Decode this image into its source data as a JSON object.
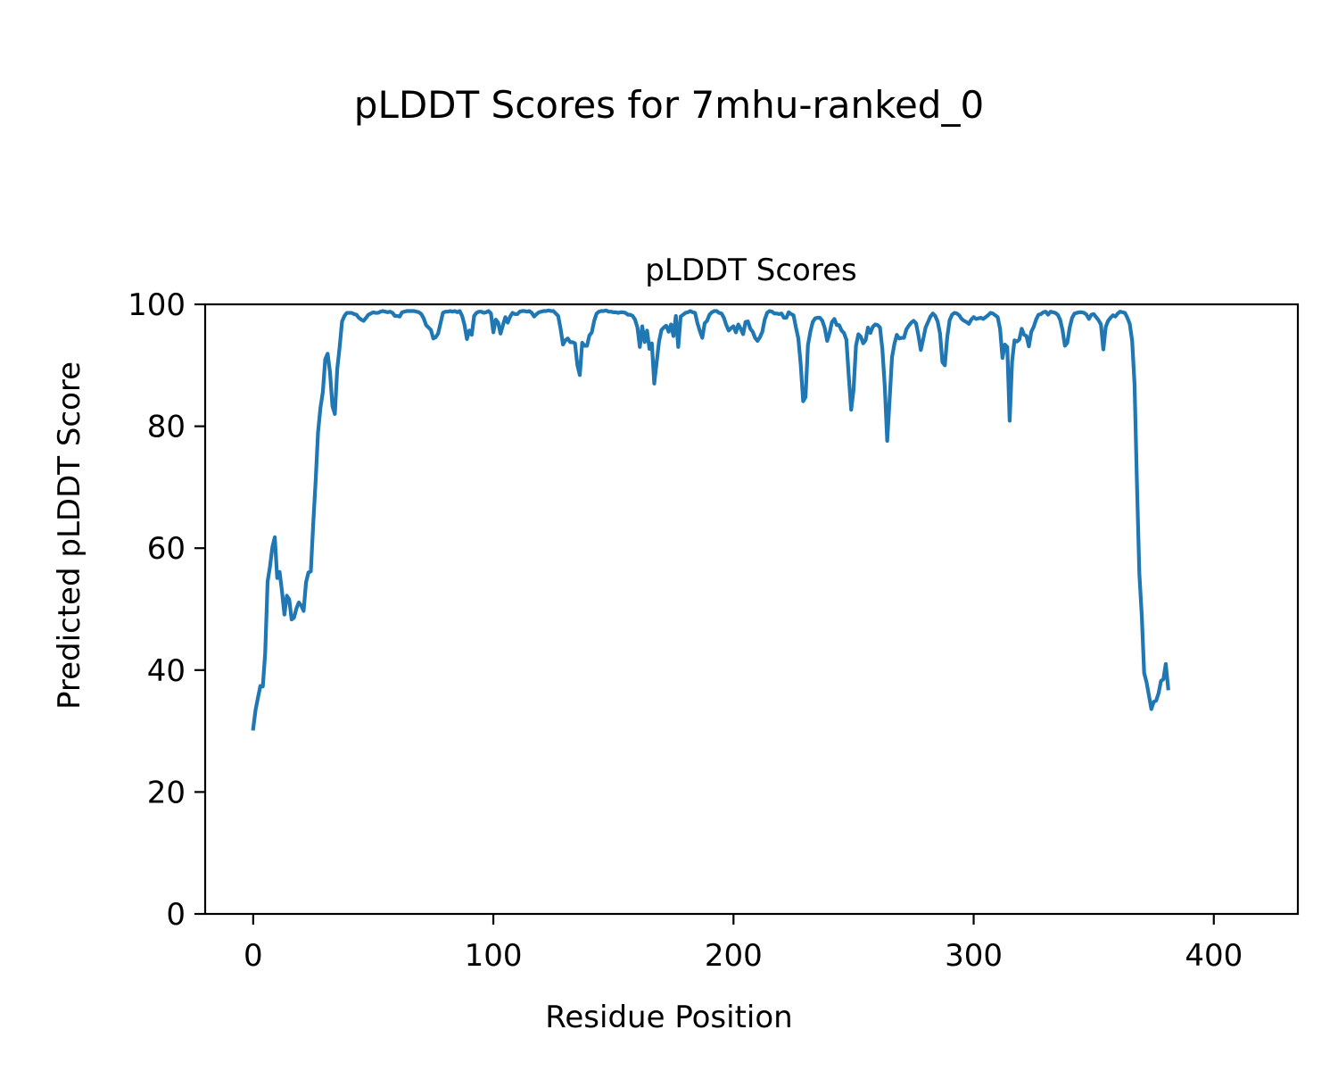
{
  "figure": {
    "suptitle": "pLDDT Scores for 7mhu-ranked_0"
  },
  "chart_data": {
    "type": "line",
    "title": "pLDDT Scores",
    "xlabel": "Residue Position",
    "ylabel": "Predicted pLDDT Score",
    "xlim": [
      -20,
      435
    ],
    "ylim": [
      0,
      100
    ],
    "xticks": [
      0,
      100,
      200,
      300,
      400
    ],
    "yticks": [
      0,
      20,
      40,
      60,
      80,
      100
    ],
    "grid": false,
    "legend": "none",
    "series": [
      {
        "color": "#1f77b4",
        "x_start": 0,
        "x_step": 1,
        "values": [
          30.4,
          33.5,
          35.5,
          37.4,
          37.3,
          42.8,
          54.5,
          57.0,
          60.2,
          61.8,
          55.1,
          56.1,
          52.9,
          49.1,
          52.2,
          51.6,
          48.3,
          48.6,
          50.1,
          51.1,
          50.6,
          49.7,
          54.4,
          56.0,
          56.2,
          64.0,
          71.0,
          79.0,
          83.0,
          85.6,
          91.0,
          91.9,
          88.8,
          83.3,
          82.0,
          89.4,
          93.0,
          97.2,
          98.1,
          98.6,
          98.6,
          98.6,
          98.4,
          98.3,
          97.8,
          97.5,
          97.3,
          97.8,
          98.3,
          98.5,
          98.7,
          98.6,
          98.6,
          98.8,
          98.9,
          98.8,
          98.7,
          98.8,
          98.6,
          98.1,
          98.1,
          98.0,
          98.7,
          98.8,
          98.9,
          98.9,
          98.9,
          98.9,
          98.8,
          98.7,
          98.4,
          97.7,
          96.6,
          96.2,
          95.8,
          94.4,
          94.6,
          95.2,
          96.9,
          98.6,
          98.8,
          98.8,
          98.9,
          98.8,
          98.9,
          98.7,
          98.9,
          98.1,
          96.6,
          94.3,
          95.7,
          95.0,
          98.1,
          98.6,
          98.8,
          98.8,
          98.6,
          98.7,
          98.9,
          98.5,
          95.4,
          97.5,
          97.0,
          95.2,
          96.6,
          97.9,
          97.0,
          98.0,
          98.6,
          98.4,
          98.4,
          98.8,
          98.9,
          98.9,
          98.8,
          98.9,
          98.6,
          98.0,
          98.4,
          98.7,
          98.8,
          98.9,
          98.9,
          99.0,
          98.9,
          98.9,
          98.5,
          98.1,
          96.0,
          93.4,
          94.1,
          94.4,
          93.8,
          93.8,
          93.6,
          90.0,
          88.4,
          93.7,
          93.2,
          93.2,
          94.9,
          95.4,
          97.3,
          98.5,
          98.8,
          98.9,
          98.9,
          99.0,
          98.8,
          98.8,
          98.7,
          98.7,
          98.6,
          98.7,
          98.7,
          98.6,
          98.3,
          98.3,
          98.1,
          97.5,
          96.2,
          93.0,
          96.4,
          93.8,
          95.7,
          92.7,
          93.6,
          87.0,
          90.5,
          93.9,
          95.8,
          96.2,
          96.5,
          95.5,
          96.7,
          94.8,
          98.1,
          93.0,
          98.0,
          98.3,
          98.6,
          98.7,
          98.9,
          98.7,
          98.6,
          96.9,
          95.6,
          94.5,
          96.9,
          97.3,
          98.3,
          98.7,
          98.9,
          98.9,
          98.6,
          98.5,
          97.8,
          96.6,
          95.7,
          96.1,
          96.4,
          95.4,
          96.7,
          96.0,
          95.1,
          97.1,
          97.2,
          96.0,
          95.5,
          94.5,
          94.0,
          94.6,
          95.5,
          97.5,
          98.6,
          98.9,
          98.8,
          98.5,
          98.5,
          98.4,
          98.5,
          97.8,
          97.8,
          98.7,
          98.4,
          98.2,
          96.2,
          94.4,
          90.1,
          84.1,
          84.8,
          93.3,
          95.5,
          97.1,
          97.7,
          97.8,
          97.8,
          97.3,
          96.1,
          94.0,
          95.3,
          97.1,
          97.6,
          96.6,
          96.6,
          95.7,
          95.3,
          94.2,
          88.2,
          82.7,
          86.0,
          93.2,
          95.1,
          94.7,
          93.6,
          94.1,
          96.2,
          95.3,
          96.3,
          96.7,
          96.6,
          96.2,
          92.6,
          86.5,
          77.6,
          84.3,
          91.3,
          93.5,
          95.0,
          94.4,
          94.5,
          94.5,
          95.9,
          96.5,
          97.0,
          97.3,
          96.9,
          94.9,
          92.5,
          94.3,
          96.2,
          97.1,
          98.0,
          98.5,
          98.1,
          97.2,
          95.2,
          90.5,
          90.0,
          94.6,
          97.4,
          98.3,
          98.6,
          98.5,
          98.2,
          97.6,
          97.3,
          97.1,
          96.8,
          97.5,
          97.9,
          97.6,
          97.7,
          97.8,
          97.6,
          97.9,
          98.2,
          98.6,
          98.5,
          98.2,
          97.9,
          96.0,
          91.2,
          93.4,
          93.0,
          80.9,
          90.6,
          94.1,
          93.9,
          94.2,
          96.0,
          95.0,
          94.8,
          93.1,
          95.5,
          96.3,
          97.5,
          98.3,
          98.4,
          98.7,
          98.8,
          98.3,
          98.8,
          98.7,
          98.6,
          98.3,
          97.5,
          95.8,
          93.2,
          93.7,
          96.2,
          97.8,
          98.5,
          98.6,
          98.7,
          98.7,
          98.6,
          98.3,
          97.6,
          98.3,
          98.4,
          97.9,
          97.4,
          96.7,
          92.6,
          96.3,
          97.3,
          97.8,
          98.2,
          98.0,
          98.5,
          98.8,
          98.7,
          98.6,
          97.8,
          96.8,
          94.0,
          86.9,
          70.5,
          55.8,
          49.0,
          39.5,
          38.0,
          35.8,
          33.6,
          34.8,
          35.0,
          36.2,
          38.2,
          38.5,
          41.0,
          37.0
        ]
      }
    ]
  }
}
